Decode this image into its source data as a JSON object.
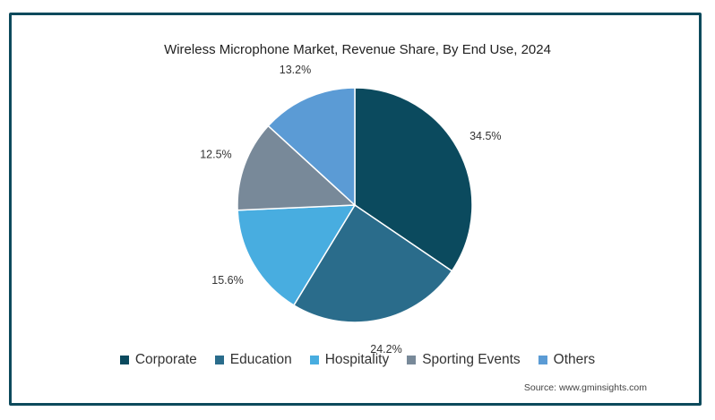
{
  "chart_data": {
    "type": "pie",
    "title": "Wireless Microphone Market, Revenue Share, By End Use, 2024",
    "slices": [
      {
        "label": "Corporate",
        "value": 34.5,
        "value_label": "34.5%",
        "color": "#0b4a5e"
      },
      {
        "label": "Education",
        "value": 24.2,
        "value_label": "24.2%",
        "color": "#2a6c8b"
      },
      {
        "label": "Hospitality",
        "value": 15.6,
        "value_label": "15.6%",
        "color": "#48ade0"
      },
      {
        "label": "Sporting Events",
        "value": 12.5,
        "value_label": "12.5%",
        "color": "#788999"
      },
      {
        "label": "Others",
        "value": 13.2,
        "value_label": "13.2%",
        "color": "#5b9bd5"
      }
    ],
    "legend_position": "bottom",
    "source": "Source: www.gminsights.com"
  }
}
